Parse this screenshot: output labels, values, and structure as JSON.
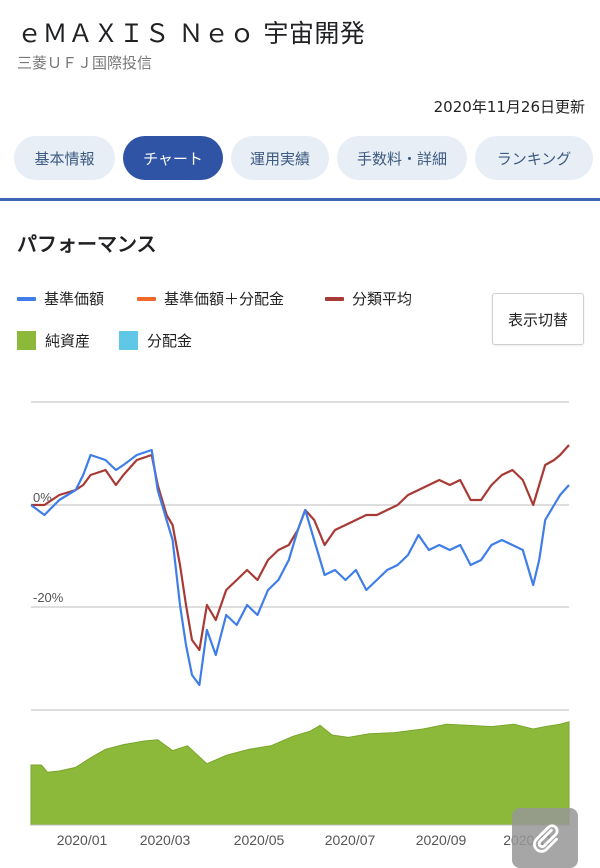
{
  "header": {
    "fund_name": "ｅＭＡＸＩＳ Ｎｅｏ 宇宙開発",
    "company": "三菱ＵＦＪ国際投信",
    "updated": "2020年11月26日更新"
  },
  "tabs": [
    {
      "label": "基本情報",
      "active": false
    },
    {
      "label": "チャート",
      "active": true
    },
    {
      "label": "運用実績",
      "active": false
    },
    {
      "label": "手数料・詳細",
      "active": false
    },
    {
      "label": "ランキング",
      "active": false
    }
  ],
  "section": {
    "title": "パフォーマンス"
  },
  "legend": [
    {
      "label": "基準価額",
      "color": "#3f7ee8",
      "kind": "line"
    },
    {
      "label": "基準価額＋分配金",
      "color": "#ef6a2a",
      "kind": "line"
    },
    {
      "label": "分類平均",
      "color": "#a83a36",
      "kind": "line"
    },
    {
      "label": "純資産",
      "color": "#8db93b",
      "kind": "box"
    },
    {
      "label": "分配金",
      "color": "#5ec8e6",
      "kind": "box"
    }
  ],
  "toggle_button": {
    "label": "表示切替"
  },
  "chart_data": {
    "type": "line",
    "y_ticks": [
      "0%",
      "-20%"
    ],
    "ylim": [
      -40,
      20
    ],
    "x_ticks": [
      "2020/01",
      "2020/03",
      "2020/05",
      "2020/07",
      "2020/09",
      "2020/11"
    ],
    "x_range": [
      "2019-12-01",
      "2020-11-26"
    ],
    "series": [
      {
        "name": "基準価額",
        "color": "#3f7ee8",
        "points": [
          [
            "2019-12-01",
            0
          ],
          [
            "2019-12-10",
            -2
          ],
          [
            "2019-12-20",
            1
          ],
          [
            "2019-12-31",
            3
          ],
          [
            "2020-01-05",
            6
          ],
          [
            "2020-01-10",
            10
          ],
          [
            "2020-01-20",
            9
          ],
          [
            "2020-01-27",
            7
          ],
          [
            "2020-02-01",
            8
          ],
          [
            "2020-02-10",
            10
          ],
          [
            "2020-02-20",
            11
          ],
          [
            "2020-02-24",
            3
          ],
          [
            "2020-03-01",
            -3
          ],
          [
            "2020-03-05",
            -7
          ],
          [
            "2020-03-10",
            -20
          ],
          [
            "2020-03-14",
            -28
          ],
          [
            "2020-03-18",
            -34
          ],
          [
            "2020-03-23",
            -36
          ],
          [
            "2020-03-28",
            -25
          ],
          [
            "2020-04-03",
            -30
          ],
          [
            "2020-04-10",
            -22
          ],
          [
            "2020-04-17",
            -24
          ],
          [
            "2020-04-24",
            -20
          ],
          [
            "2020-05-01",
            -22
          ],
          [
            "2020-05-08",
            -17
          ],
          [
            "2020-05-15",
            -15
          ],
          [
            "2020-05-22",
            -11
          ],
          [
            "2020-05-28",
            -5
          ],
          [
            "2020-06-02",
            -1
          ],
          [
            "2020-06-08",
            -7
          ],
          [
            "2020-06-15",
            -14
          ],
          [
            "2020-06-22",
            -13
          ],
          [
            "2020-06-29",
            -15
          ],
          [
            "2020-07-06",
            -13
          ],
          [
            "2020-07-13",
            -17
          ],
          [
            "2020-07-20",
            -15
          ],
          [
            "2020-07-27",
            -13
          ],
          [
            "2020-08-03",
            -12
          ],
          [
            "2020-08-10",
            -10
          ],
          [
            "2020-08-17",
            -6
          ],
          [
            "2020-08-24",
            -9
          ],
          [
            "2020-08-31",
            -8
          ],
          [
            "2020-09-07",
            -9
          ],
          [
            "2020-09-14",
            -8
          ],
          [
            "2020-09-21",
            -12
          ],
          [
            "2020-09-28",
            -11
          ],
          [
            "2020-10-05",
            -8
          ],
          [
            "2020-10-12",
            -7
          ],
          [
            "2020-10-19",
            -8
          ],
          [
            "2020-10-26",
            -9
          ],
          [
            "2020-11-02",
            -16
          ],
          [
            "2020-11-06",
            -11
          ],
          [
            "2020-11-10",
            -3
          ],
          [
            "2020-11-16",
            0
          ],
          [
            "2020-11-20",
            2
          ],
          [
            "2020-11-26",
            4
          ]
        ]
      },
      {
        "name": "分類平均",
        "color": "#a83a36",
        "points": [
          [
            "2019-12-01",
            0
          ],
          [
            "2019-12-10",
            0
          ],
          [
            "2019-12-20",
            2
          ],
          [
            "2019-12-31",
            3
          ],
          [
            "2020-01-05",
            4
          ],
          [
            "2020-01-10",
            6
          ],
          [
            "2020-01-20",
            7
          ],
          [
            "2020-01-27",
            4
          ],
          [
            "2020-02-01",
            6
          ],
          [
            "2020-02-10",
            9
          ],
          [
            "2020-02-20",
            10
          ],
          [
            "2020-02-24",
            4
          ],
          [
            "2020-03-01",
            -2
          ],
          [
            "2020-03-05",
            -4
          ],
          [
            "2020-03-10",
            -12
          ],
          [
            "2020-03-14",
            -20
          ],
          [
            "2020-03-18",
            -27
          ],
          [
            "2020-03-23",
            -29
          ],
          [
            "2020-03-28",
            -20
          ],
          [
            "2020-04-03",
            -23
          ],
          [
            "2020-04-10",
            -17
          ],
          [
            "2020-04-17",
            -15
          ],
          [
            "2020-04-24",
            -13
          ],
          [
            "2020-05-01",
            -15
          ],
          [
            "2020-05-08",
            -11
          ],
          [
            "2020-05-15",
            -9
          ],
          [
            "2020-05-22",
            -8
          ],
          [
            "2020-05-28",
            -5
          ],
          [
            "2020-06-02",
            -1
          ],
          [
            "2020-06-08",
            -3
          ],
          [
            "2020-06-15",
            -8
          ],
          [
            "2020-06-22",
            -5
          ],
          [
            "2020-06-29",
            -4
          ],
          [
            "2020-07-06",
            -3
          ],
          [
            "2020-07-13",
            -2
          ],
          [
            "2020-07-20",
            -2
          ],
          [
            "2020-07-27",
            -1
          ],
          [
            "2020-08-03",
            0
          ],
          [
            "2020-08-10",
            2
          ],
          [
            "2020-08-17",
            3
          ],
          [
            "2020-08-24",
            4
          ],
          [
            "2020-08-31",
            5
          ],
          [
            "2020-09-07",
            4
          ],
          [
            "2020-09-14",
            5
          ],
          [
            "2020-09-21",
            1
          ],
          [
            "2020-09-28",
            1
          ],
          [
            "2020-10-05",
            4
          ],
          [
            "2020-10-12",
            6
          ],
          [
            "2020-10-19",
            7
          ],
          [
            "2020-10-26",
            5
          ],
          [
            "2020-11-02",
            0
          ],
          [
            "2020-11-06",
            4
          ],
          [
            "2020-11-10",
            8
          ],
          [
            "2020-11-16",
            9
          ],
          [
            "2020-11-20",
            10
          ],
          [
            "2020-11-26",
            12
          ]
        ]
      }
    ],
    "net_assets": {
      "name": "純資産",
      "color": "#8db93b",
      "points": [
        [
          "2019-12-01",
          50
        ],
        [
          "2019-12-08",
          50
        ],
        [
          "2019-12-12",
          44
        ],
        [
          "2019-12-20",
          45
        ],
        [
          "2019-12-31",
          48
        ],
        [
          "2020-01-10",
          56
        ],
        [
          "2020-01-20",
          63
        ],
        [
          "2020-02-01",
          67
        ],
        [
          "2020-02-15",
          70
        ],
        [
          "2020-02-24",
          71
        ],
        [
          "2020-03-05",
          62
        ],
        [
          "2020-03-15",
          66
        ],
        [
          "2020-03-28",
          51
        ],
        [
          "2020-04-10",
          58
        ],
        [
          "2020-04-25",
          63
        ],
        [
          "2020-05-10",
          66
        ],
        [
          "2020-05-25",
          74
        ],
        [
          "2020-06-05",
          78
        ],
        [
          "2020-06-12",
          83
        ],
        [
          "2020-06-20",
          75
        ],
        [
          "2020-07-01",
          73
        ],
        [
          "2020-07-15",
          76
        ],
        [
          "2020-08-01",
          77
        ],
        [
          "2020-08-20",
          80
        ],
        [
          "2020-09-05",
          84
        ],
        [
          "2020-09-20",
          83
        ],
        [
          "2020-10-05",
          82
        ],
        [
          "2020-10-20",
          84
        ],
        [
          "2020-11-02",
          80
        ],
        [
          "2020-11-10",
          82
        ],
        [
          "2020-11-20",
          84
        ],
        [
          "2020-11-26",
          86
        ]
      ]
    }
  }
}
